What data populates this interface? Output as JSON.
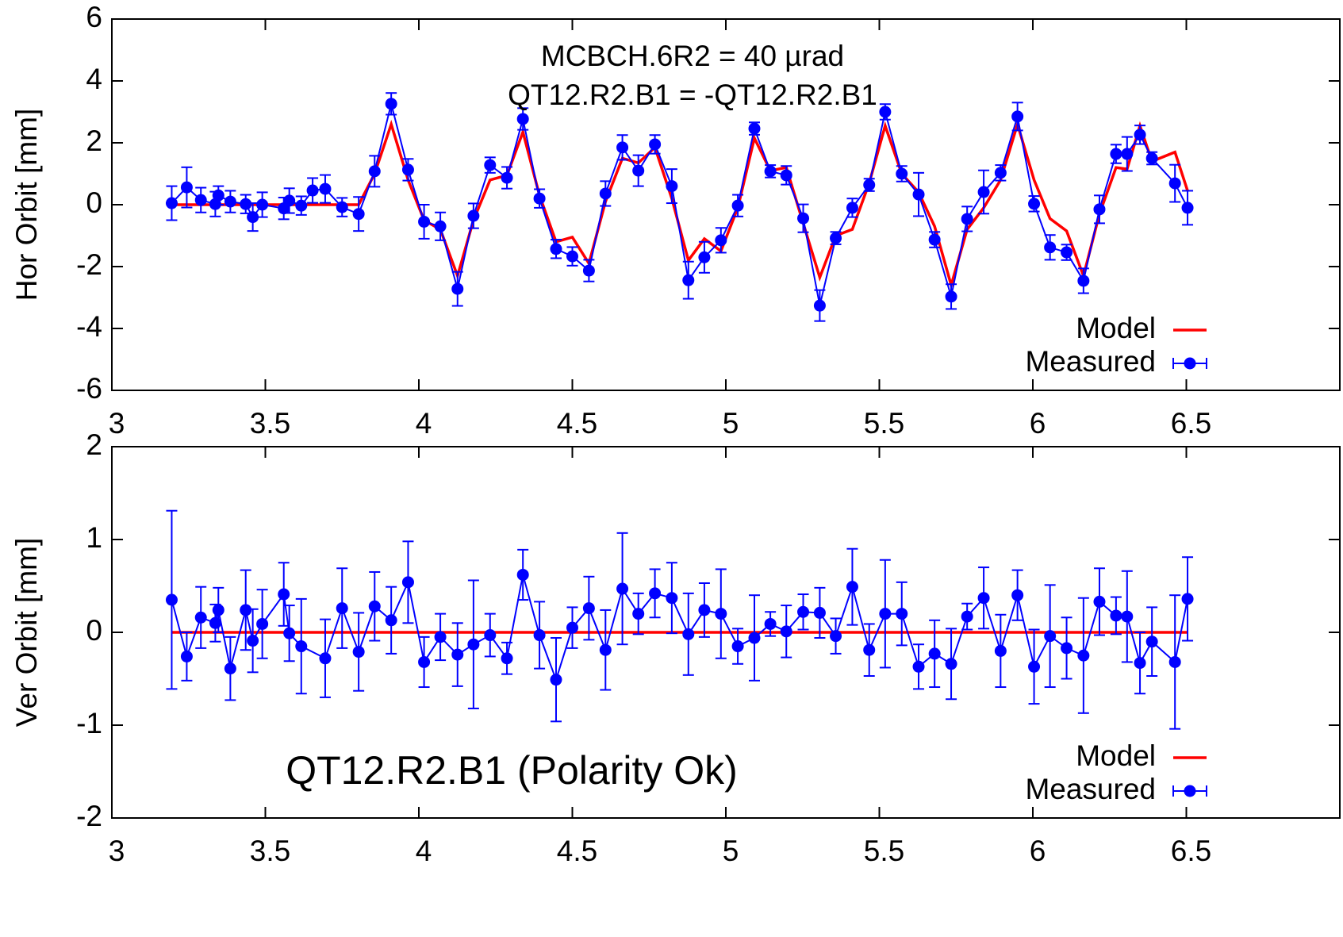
{
  "chart_data": [
    {
      "type": "line",
      "ylabel": "Hor Orbit [mm]",
      "annotations": [
        "MCBCH.6R2 = 40 µrad",
        "QT12.R2.B1 = -QT12.R2.B1"
      ],
      "xlim": [
        3,
        7
      ],
      "xticks": [
        3,
        3.5,
        4,
        4.5,
        5,
        5.5,
        6,
        6.5
      ],
      "ylim": [
        -6,
        6
      ],
      "yticks": [
        -6,
        -4,
        -2,
        0,
        2,
        4,
        6
      ],
      "legend": "lower right",
      "series": [
        {
          "name": "Model",
          "color": "#ff0000",
          "x": [
            3.195,
            3.244,
            3.29,
            3.337,
            3.347,
            3.386,
            3.436,
            3.459,
            3.49,
            3.56,
            3.578,
            3.617,
            3.654,
            3.695,
            3.75,
            3.804,
            3.856,
            3.91,
            3.965,
            4.017,
            4.07,
            4.126,
            4.178,
            4.232,
            4.287,
            4.339,
            4.393,
            4.447,
            4.5,
            4.554,
            4.608,
            4.663,
            4.715,
            4.769,
            4.824,
            4.878,
            4.93,
            4.984,
            5.039,
            5.093,
            5.145,
            5.197,
            5.252,
            5.306,
            5.358,
            5.412,
            5.467,
            5.519,
            5.573,
            5.628,
            5.68,
            5.734,
            5.786,
            5.84,
            5.895,
            5.95,
            6.004,
            6.056,
            6.11,
            6.165,
            6.217,
            6.271,
            6.307,
            6.349,
            6.388,
            6.463,
            6.504
          ],
          "values": [
            0,
            0,
            0,
            0,
            0,
            0,
            0,
            0,
            0,
            0,
            0,
            0,
            0,
            0,
            0,
            0,
            1.0,
            2.6,
            0.8,
            -0.5,
            -0.8,
            -2.3,
            -0.5,
            0.8,
            0.95,
            2.35,
            0.3,
            -1.2,
            -1.05,
            -1.9,
            0.1,
            1.5,
            1.35,
            1.85,
            0.2,
            -1.8,
            -1.1,
            -1.5,
            -0.1,
            2.15,
            1.1,
            1.2,
            -0.6,
            -2.35,
            -1.0,
            -0.8,
            0.7,
            2.55,
            1.0,
            0.4,
            -0.7,
            -2.6,
            -0.8,
            -0.1,
            0.8,
            2.6,
            0.8,
            -0.45,
            -0.85,
            -2.3,
            -0.3,
            1.2,
            1.15,
            2.55,
            1.4,
            1.7,
            0.45
          ]
        },
        {
          "name": "Measured",
          "color": "#0000ff",
          "x": [
            3.195,
            3.244,
            3.29,
            3.337,
            3.347,
            3.386,
            3.436,
            3.459,
            3.49,
            3.56,
            3.578,
            3.617,
            3.654,
            3.695,
            3.75,
            3.804,
            3.856,
            3.91,
            3.965,
            4.017,
            4.07,
            4.126,
            4.178,
            4.232,
            4.287,
            4.339,
            4.393,
            4.447,
            4.5,
            4.554,
            4.608,
            4.663,
            4.715,
            4.769,
            4.824,
            4.878,
            4.93,
            4.984,
            5.039,
            5.093,
            5.145,
            5.197,
            5.252,
            5.306,
            5.358,
            5.412,
            5.467,
            5.519,
            5.573,
            5.628,
            5.68,
            5.734,
            5.786,
            5.84,
            5.895,
            5.95,
            6.004,
            6.056,
            6.11,
            6.165,
            6.217,
            6.271,
            6.307,
            6.349,
            6.388,
            6.463,
            6.504
          ],
          "values": [
            0.05,
            0.56,
            0.15,
            0.02,
            0.3,
            0.1,
            0.02,
            -0.4,
            0.0,
            -0.12,
            0.13,
            -0.03,
            0.46,
            0.51,
            -0.08,
            -0.3,
            1.08,
            3.26,
            1.13,
            -0.55,
            -0.7,
            -2.72,
            -0.36,
            1.28,
            0.87,
            2.77,
            0.2,
            -1.43,
            -1.67,
            -2.13,
            0.36,
            1.85,
            1.1,
            1.95,
            0.6,
            -2.44,
            -1.7,
            -1.15,
            -0.03,
            2.46,
            1.08,
            0.95,
            -0.44,
            -3.26,
            -1.08,
            -0.1,
            0.64,
            3.0,
            1.0,
            0.33,
            -1.13,
            -2.97,
            -0.46,
            0.41,
            1.03,
            2.85,
            0.03,
            -1.38,
            -1.54,
            -2.46,
            -0.15,
            1.64,
            1.64,
            2.26,
            1.5,
            0.69,
            -0.1
          ],
          "errors": [
            0.55,
            0.65,
            0.4,
            0.4,
            0.3,
            0.35,
            0.3,
            0.45,
            0.4,
            0.35,
            0.4,
            0.3,
            0.4,
            0.45,
            0.3,
            0.55,
            0.5,
            0.35,
            0.35,
            0.55,
            0.45,
            0.55,
            0.4,
            0.25,
            0.35,
            0.35,
            0.3,
            0.3,
            0.3,
            0.35,
            0.4,
            0.4,
            0.5,
            0.3,
            0.55,
            0.6,
            0.5,
            0.4,
            0.35,
            0.2,
            0.2,
            0.3,
            0.45,
            0.5,
            0.2,
            0.3,
            0.2,
            0.25,
            0.25,
            0.7,
            0.25,
            0.4,
            0.4,
            0.7,
            0.25,
            0.45,
            0.25,
            0.4,
            0.25,
            0.4,
            0.45,
            0.3,
            0.55,
            0.3,
            0.2,
            0.6,
            0.55
          ]
        }
      ]
    },
    {
      "type": "line",
      "ylabel": "Ver Orbit [mm]",
      "annotations": [
        "QT12.R2.B1 (Polarity Ok)"
      ],
      "xlim": [
        3,
        7
      ],
      "xticks": [
        3,
        3.5,
        4,
        4.5,
        5,
        5.5,
        6,
        6.5
      ],
      "ylim": [
        -2,
        2
      ],
      "yticks": [
        -2,
        -1,
        0,
        1,
        2
      ],
      "legend": "lower right",
      "series": [
        {
          "name": "Model",
          "color": "#ff0000",
          "x": [
            3.195,
            6.504
          ],
          "values": [
            0,
            0
          ]
        },
        {
          "name": "Measured",
          "color": "#0000ff",
          "x": [
            3.195,
            3.244,
            3.29,
            3.337,
            3.347,
            3.386,
            3.436,
            3.459,
            3.49,
            3.56,
            3.578,
            3.617,
            3.695,
            3.75,
            3.804,
            3.856,
            3.91,
            3.965,
            4.017,
            4.07,
            4.126,
            4.178,
            4.232,
            4.287,
            4.339,
            4.393,
            4.447,
            4.5,
            4.554,
            4.608,
            4.663,
            4.715,
            4.769,
            4.824,
            4.878,
            4.93,
            4.984,
            5.039,
            5.093,
            5.145,
            5.197,
            5.252,
            5.306,
            5.358,
            5.412,
            5.467,
            5.519,
            5.573,
            5.628,
            5.68,
            5.734,
            5.786,
            5.84,
            5.895,
            5.95,
            6.004,
            6.056,
            6.11,
            6.165,
            6.217,
            6.271,
            6.307,
            6.349,
            6.388,
            6.463,
            6.504
          ],
          "values": [
            0.35,
            -0.26,
            0.16,
            0.1,
            0.24,
            -0.39,
            0.24,
            -0.09,
            0.09,
            0.41,
            -0.01,
            -0.15,
            -0.28,
            0.26,
            -0.21,
            0.28,
            0.13,
            0.54,
            -0.32,
            -0.05,
            -0.24,
            -0.13,
            -0.03,
            -0.28,
            0.62,
            -0.03,
            -0.51,
            0.05,
            0.26,
            -0.19,
            0.47,
            0.2,
            0.42,
            0.37,
            -0.02,
            0.24,
            0.2,
            -0.15,
            -0.06,
            0.09,
            0.01,
            0.22,
            0.21,
            -0.04,
            0.49,
            -0.19,
            0.2,
            0.2,
            -0.37,
            -0.23,
            -0.34,
            0.17,
            0.37,
            -0.2,
            0.4,
            -0.37,
            -0.04,
            -0.17,
            -0.25,
            0.33,
            0.18,
            0.17,
            -0.33,
            -0.1,
            -0.32,
            0.36
          ],
          "errors": [
            0.96,
            0.26,
            0.33,
            0.2,
            0.24,
            0.34,
            0.43,
            0.34,
            0.37,
            0.34,
            0.3,
            0.51,
            0.42,
            0.43,
            0.42,
            0.37,
            0.36,
            0.44,
            0.27,
            0.25,
            0.34,
            0.69,
            0.23,
            0.17,
            0.27,
            0.36,
            0.45,
            0.22,
            0.34,
            0.43,
            0.6,
            0.22,
            0.26,
            0.38,
            0.44,
            0.29,
            0.48,
            0.19,
            0.46,
            0.13,
            0.28,
            0.19,
            0.27,
            0.19,
            0.41,
            0.28,
            0.58,
            0.34,
            0.24,
            0.36,
            0.38,
            0.14,
            0.33,
            0.39,
            0.27,
            0.4,
            0.55,
            0.33,
            0.62,
            0.36,
            0.2,
            0.49,
            0.33,
            0.37,
            0.72,
            0.45
          ]
        }
      ]
    }
  ]
}
